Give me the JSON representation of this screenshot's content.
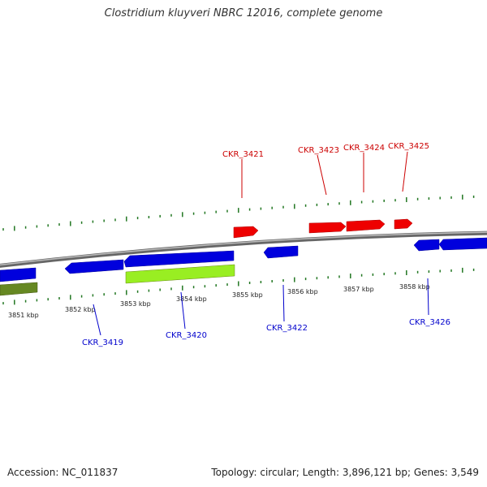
{
  "title": "Clostridium kluyveri NBRC 12016, complete genome",
  "footer": {
    "accession": "Accession: NC_011837",
    "summary": "Topology: circular; Length: 3,896,121 bp; Genes: 3,549"
  },
  "colors": {
    "forward_gene": "#ee0000",
    "reverse_gene": "#0000dd",
    "rna_gene": "#99ee22",
    "olive_gene": "#668822",
    "forward_label": "#cc0000",
    "reverse_label": "#0000cc",
    "tick": "#227722",
    "backbone": "#888888"
  },
  "scale_labels": [
    "3851 kbp",
    "3852 kbp",
    "3853 kbp",
    "3854 kbp",
    "3855 kbp",
    "3856 kbp",
    "3857 kbp",
    "3858 kbp"
  ],
  "forward_gene_labels": [
    "CKR_3421",
    "CKR_3423",
    "CKR_3424",
    "CKR_3425"
  ],
  "reverse_gene_labels": [
    "CKR_3419",
    "CKR_3420",
    "CKR_3422",
    "CKR_3426"
  ]
}
